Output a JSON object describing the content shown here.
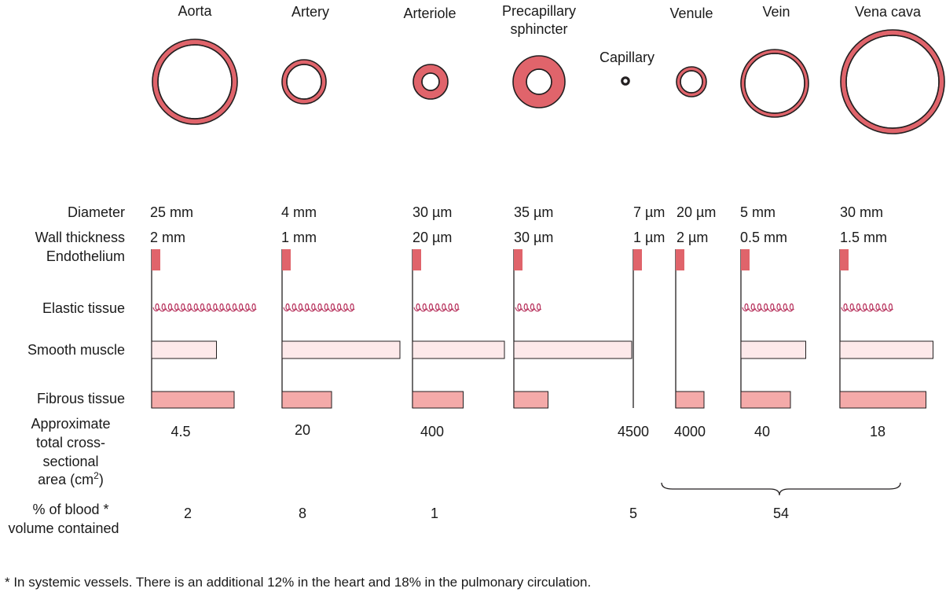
{
  "colors": {
    "wall": "#e0646b",
    "endothelium": "#e0646b",
    "elastic": "#b8345e",
    "smooth_muscle": "#fde9ea",
    "fibrous": "#f4aaa9",
    "outline": "#231f20"
  },
  "row_labels": {
    "diameter": "Diameter",
    "wall_thickness": "Wall thickness",
    "endothelium": "Endothelium",
    "elastic": "Elastic tissue",
    "smooth_muscle": "Smooth muscle",
    "fibrous": "Fibrous tissue",
    "area_line1": "Approximate",
    "area_line2": "total cross-",
    "area_line3": "sectional",
    "area_line4": "area (cm",
    "area_sup": "2",
    "area_tail": ")",
    "blood_line1": "% of blood *",
    "blood_line2": "volume contained"
  },
  "vessels": [
    {
      "name": "Aorta",
      "diameter": "25 mm",
      "wall": "2 mm",
      "area": "4.5",
      "blood": "2",
      "elastic_coils": 16,
      "smooth_muscle": 0.55,
      "fibrous": 0.7
    },
    {
      "name": "Artery",
      "diameter": "4 mm",
      "wall": "1 mm",
      "area": "20",
      "blood": "8",
      "elastic_coils": 11,
      "smooth_muscle": 1.0,
      "fibrous": 0.42
    },
    {
      "name": "Arteriole",
      "diameter": "30 µm",
      "wall": "20 µm",
      "area": "400",
      "blood": "1",
      "elastic_coils": 7,
      "smooth_muscle": 0.78,
      "fibrous": 0.43
    },
    {
      "name_line1": "Precapillary",
      "name_line2": "sphincter",
      "diameter": "35 µm",
      "wall": "30 µm",
      "elastic_coils": 4,
      "smooth_muscle": 1.0,
      "fibrous": 0.29
    },
    {
      "name": "Capillary",
      "diameter": "7 µm",
      "wall": "1 µm",
      "area": "4500",
      "blood": "5"
    },
    {
      "name": "Venule",
      "diameter": "20 µm",
      "wall": "2 µm",
      "area": "4000",
      "fibrous": 0.24
    },
    {
      "name": "Vein",
      "diameter": "5 mm",
      "wall": "0.5 mm",
      "area": "40",
      "elastic_coils": 8,
      "smooth_muscle": 0.55,
      "fibrous": 0.42
    },
    {
      "name": "Vena cava",
      "diameter": "30 mm",
      "wall": "1.5 mm",
      "area": "18",
      "elastic_coils": 8,
      "smooth_muscle": 0.79,
      "fibrous": 0.73
    }
  ],
  "venous_blood_total": "54",
  "footnote": "* In systemic vessels. There is an additional 12% in the heart and 18% in the pulmonary circulation."
}
